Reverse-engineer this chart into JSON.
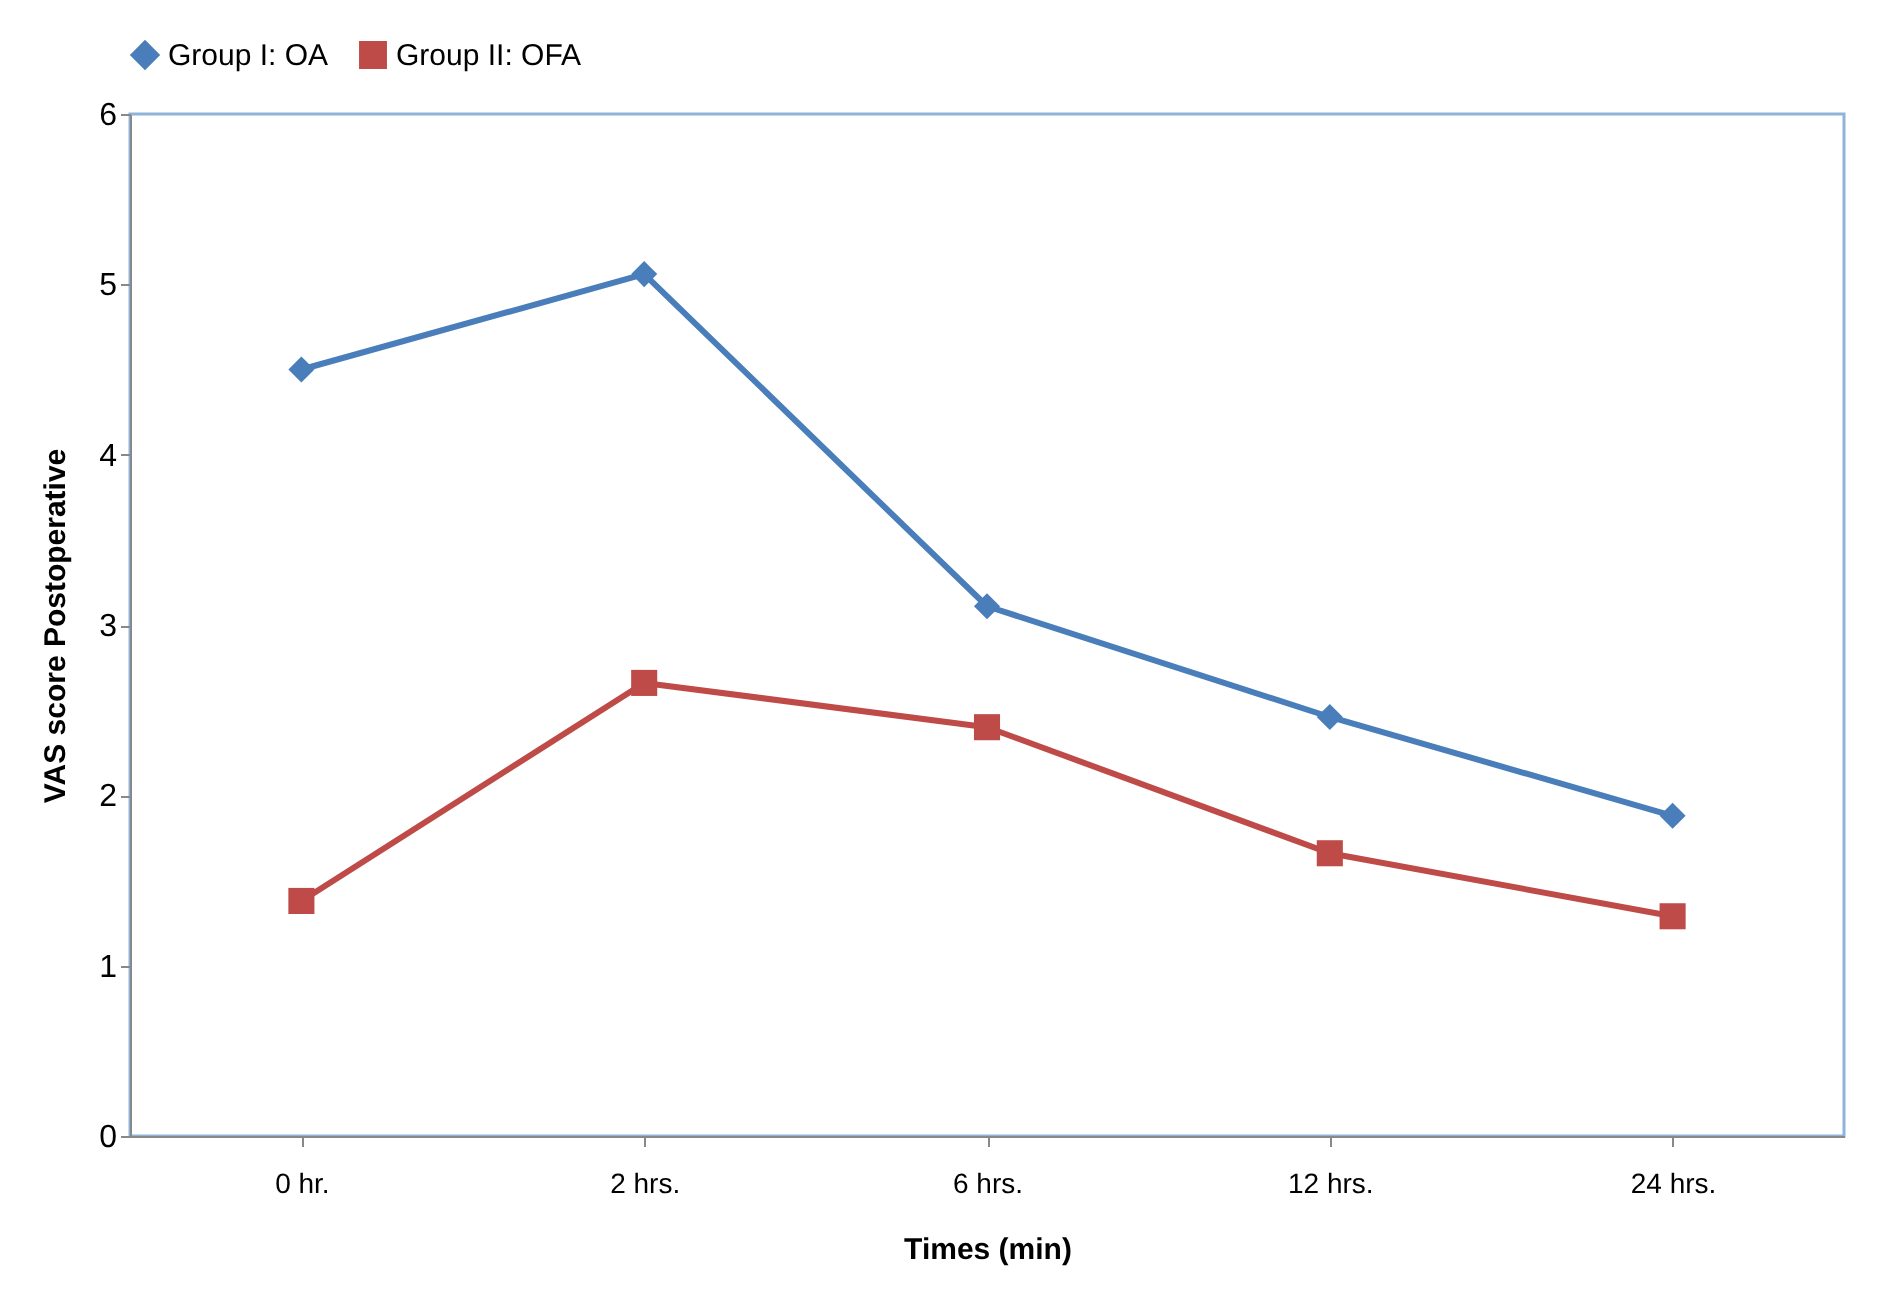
{
  "chart_data": {
    "type": "line",
    "xlabel": "Times (min)",
    "ylabel": "VAS score Postoperative",
    "categories": [
      "0 hr.",
      "2 hrs.",
      "6 hrs.",
      "12 hrs.",
      "24 hrs."
    ],
    "series": [
      {
        "name": "Group I: OA",
        "color": "#4a7ebb",
        "marker": "diamond",
        "values": [
          4.5,
          5.06,
          3.11,
          2.46,
          1.88
        ]
      },
      {
        "name": "Group II: OFA",
        "color": "#be4b48",
        "marker": "square",
        "values": [
          1.38,
          2.66,
          2.4,
          1.66,
          1.29
        ]
      }
    ],
    "ylim": [
      0,
      6
    ],
    "yticks": [
      0,
      1,
      2,
      3,
      4,
      5,
      6
    ],
    "grid": false,
    "legend": "top"
  }
}
